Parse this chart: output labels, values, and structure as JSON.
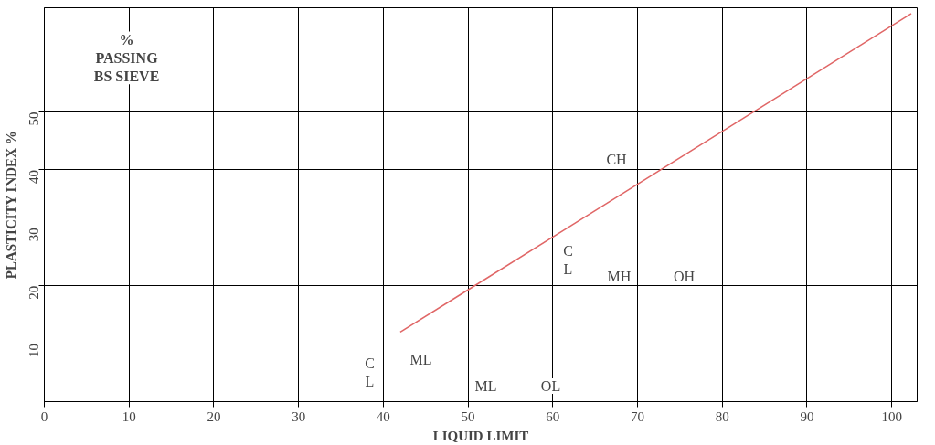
{
  "chart_data": {
    "type": "line",
    "xlabel": "LIQUID LIMIT",
    "ylabel": "PLASTICITY INDEX %",
    "xlim": [
      0,
      103
    ],
    "ylim": [
      0,
      68
    ],
    "xticks": [
      0,
      10,
      20,
      30,
      40,
      50,
      60,
      70,
      80,
      90,
      100
    ],
    "yticks": [
      10,
      20,
      30,
      40,
      50
    ],
    "grid": true,
    "series": [
      {
        "color": "#e06666",
        "x": [
          42,
          102.3
        ],
        "values": [
          12,
          67
        ]
      }
    ],
    "annotations": [
      "%\nPASSING\nBS SIEVE",
      "C\nL",
      "ML",
      "ML",
      "OL",
      "C\nL",
      "MH",
      "OH",
      "CH"
    ]
  }
}
